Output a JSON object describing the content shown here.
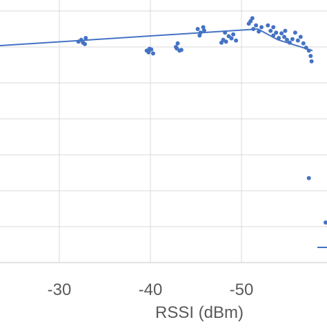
{
  "colors": {
    "series": "#4472c4",
    "grid": "#d9d9d9",
    "text": "#595959",
    "background": "#ffffff"
  },
  "chart_data": {
    "type": "scatter",
    "xlabel": "RSSI (dBm)",
    "ylabel": "",
    "title": "",
    "x_axis": {
      "reversed": true,
      "visible_range": [
        -21.2,
        -57.8
      ],
      "ticks": [
        -30,
        -40,
        -50
      ],
      "tick_labels": [
        "-30",
        "-40",
        "-50"
      ]
    },
    "y_axis": {
      "tick_labels": [],
      "note": "y tick labels cropped out of view"
    },
    "grid": true,
    "series": [
      {
        "kind": "scatter",
        "points": [
          [
            -32.1,
            0.615
          ],
          [
            -32.4,
            0.62
          ],
          [
            -32.8,
            0.608
          ],
          [
            -32.9,
            0.625
          ],
          [
            -32.6,
            0.612
          ],
          [
            -39.6,
            0.59
          ],
          [
            -39.8,
            0.585
          ],
          [
            -40.1,
            0.593
          ],
          [
            -40.3,
            0.582
          ],
          [
            -39.9,
            0.595
          ],
          [
            -42.8,
            0.6
          ],
          [
            -43.0,
            0.61
          ],
          [
            -43.2,
            0.59
          ],
          [
            -42.9,
            0.596
          ],
          [
            -43.4,
            0.592
          ],
          [
            -45.2,
            0.65
          ],
          [
            -45.5,
            0.64
          ],
          [
            -45.8,
            0.655
          ],
          [
            -45.4,
            0.632
          ],
          [
            -45.9,
            0.646
          ],
          [
            -47.8,
            0.612
          ],
          [
            -48.0,
            0.62
          ],
          [
            -48.3,
            0.615
          ],
          [
            -48.6,
            0.63
          ],
          [
            -48.9,
            0.624
          ],
          [
            -49.1,
            0.635
          ],
          [
            -49.4,
            0.618
          ],
          [
            -48.2,
            0.64
          ],
          [
            -50.8,
            0.665
          ],
          [
            -51.0,
            0.672
          ],
          [
            -51.2,
            0.68
          ],
          [
            -51.3,
            0.65
          ],
          [
            -51.6,
            0.66
          ],
          [
            -51.9,
            0.643
          ],
          [
            -52.2,
            0.655
          ],
          [
            -52.9,
            0.66
          ],
          [
            -53.2,
            0.645
          ],
          [
            -53.5,
            0.632
          ],
          [
            -53.8,
            0.64
          ],
          [
            -54.1,
            0.625
          ],
          [
            -54.4,
            0.638
          ],
          [
            -54.7,
            0.628
          ],
          [
            -55.0,
            0.62
          ],
          [
            -55.3,
            0.612
          ],
          [
            -55.6,
            0.622
          ],
          [
            -55.9,
            0.64
          ],
          [
            -56.2,
            0.618
          ],
          [
            -56.5,
            0.628
          ],
          [
            -56.8,
            0.61
          ],
          [
            -57.1,
            0.598
          ],
          [
            -57.4,
            0.59
          ],
          [
            -57.6,
            0.575
          ],
          [
            -57.7,
            0.56
          ],
          [
            -53.5,
            0.655
          ],
          [
            -54.8,
            0.645
          ],
          [
            -57.4,
            0.235
          ]
        ]
      },
      {
        "kind": "trendline",
        "points": [
          [
            -21.2,
            0.6
          ],
          [
            -51.8,
            0.65
          ],
          [
            -54.0,
            0.62
          ],
          [
            -57.8,
            0.59
          ]
        ]
      }
    ]
  }
}
